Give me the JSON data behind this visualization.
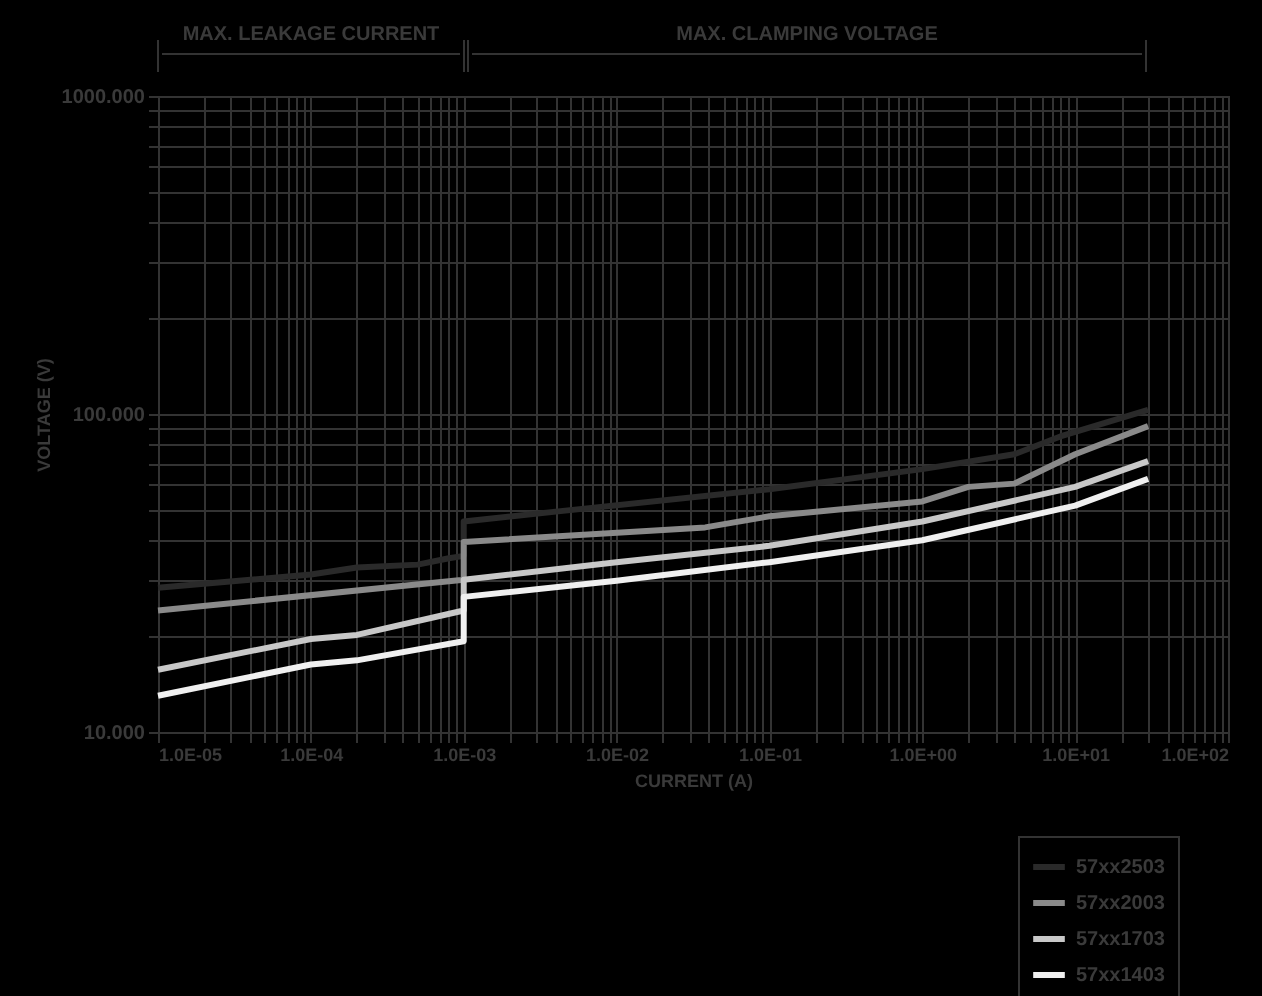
{
  "chart_data": {
    "type": "line",
    "xlabel": "CURRENT (A)",
    "ylabel": "VOLTAGE (V)",
    "annotations": [
      "MAX. LEAKAGE CURRENT",
      "MAX. CLAMPING VOLTAGE"
    ],
    "log": "xy",
    "grid": true,
    "legend": "bottom right",
    "line_style": "solid",
    "marker": "none",
    "xlim": [
      1e-05,
      100
    ],
    "ylim": [
      10,
      1000
    ],
    "xticks": [
      {
        "value": 1e-05,
        "label": "1.0E-05"
      },
      {
        "value": 2e-05,
        "label": null
      },
      {
        "value": 3e-05,
        "label": null
      },
      {
        "value": 4e-05,
        "label": null
      },
      {
        "value": 5e-05,
        "label": null
      },
      {
        "value": 6e-05,
        "label": null
      },
      {
        "value": 7e-05,
        "label": null
      },
      {
        "value": 8e-05,
        "label": null
      },
      {
        "value": 9e-05,
        "label": null
      },
      {
        "value": 0.0001,
        "label": "1.0E-04"
      },
      {
        "value": 0.0002,
        "label": null
      },
      {
        "value": 0.0003,
        "label": null
      },
      {
        "value": 0.0004,
        "label": null
      },
      {
        "value": 0.0005,
        "label": null
      },
      {
        "value": 0.0006,
        "label": null
      },
      {
        "value": 0.0007,
        "label": null
      },
      {
        "value": 0.0008,
        "label": null
      },
      {
        "value": 0.0009,
        "label": null
      },
      {
        "value": 0.001,
        "label": "1.0E-03"
      },
      {
        "value": 0.002,
        "label": null
      },
      {
        "value": 0.003,
        "label": null
      },
      {
        "value": 0.004,
        "label": null
      },
      {
        "value": 0.005,
        "label": null
      },
      {
        "value": 0.006,
        "label": null
      },
      {
        "value": 0.007,
        "label": null
      },
      {
        "value": 0.008,
        "label": null
      },
      {
        "value": 0.009,
        "label": null
      },
      {
        "value": 0.01,
        "label": "1.0E-02"
      },
      {
        "value": 0.02,
        "label": null
      },
      {
        "value": 0.03,
        "label": null
      },
      {
        "value": 0.04,
        "label": null
      },
      {
        "value": 0.05,
        "label": null
      },
      {
        "value": 0.06,
        "label": null
      },
      {
        "value": 0.07,
        "label": null
      },
      {
        "value": 0.08,
        "label": null
      },
      {
        "value": 0.09,
        "label": null
      },
      {
        "value": 0.1,
        "label": "1.0E-01"
      },
      {
        "value": 0.2,
        "label": null
      },
      {
        "value": 0.3,
        "label": null
      },
      {
        "value": 0.4,
        "label": null
      },
      {
        "value": 0.5,
        "label": null
      },
      {
        "value": 0.6,
        "label": null
      },
      {
        "value": 0.7,
        "label": null
      },
      {
        "value": 0.8,
        "label": null
      },
      {
        "value": 0.9,
        "label": null
      },
      {
        "value": 1,
        "label": "1.0E+00"
      },
      {
        "value": 2,
        "label": null
      },
      {
        "value": 3,
        "label": null
      },
      {
        "value": 4,
        "label": null
      },
      {
        "value": 5,
        "label": null
      },
      {
        "value": 6,
        "label": null
      },
      {
        "value": 7,
        "label": null
      },
      {
        "value": 8,
        "label": null
      },
      {
        "value": 9,
        "label": null
      },
      {
        "value": 10,
        "label": "1.0E+01"
      },
      {
        "value": 20,
        "label": null
      },
      {
        "value": 30,
        "label": null
      },
      {
        "value": 40,
        "label": null
      },
      {
        "value": 50,
        "label": null
      },
      {
        "value": 60,
        "label": null
      },
      {
        "value": 70,
        "label": null
      },
      {
        "value": 80,
        "label": null
      },
      {
        "value": 90,
        "label": null
      },
      {
        "value": 100,
        "label": "1.0E+02"
      }
    ],
    "yticks": [
      {
        "value": 10,
        "label": "10.000"
      },
      {
        "value": 20,
        "label": null
      },
      {
        "value": 30,
        "label": null
      },
      {
        "value": 40,
        "label": null
      },
      {
        "value": 50,
        "label": null
      },
      {
        "value": 60,
        "label": null
      },
      {
        "value": 70,
        "label": null
      },
      {
        "value": 80,
        "label": null
      },
      {
        "value": 90,
        "label": null
      },
      {
        "value": 100,
        "label": "100.000"
      },
      {
        "value": 200,
        "label": null
      },
      {
        "value": 300,
        "label": null
      },
      {
        "value": 400,
        "label": null
      },
      {
        "value": 500,
        "label": null
      },
      {
        "value": 600,
        "label": null
      },
      {
        "value": 700,
        "label": null
      },
      {
        "value": 800,
        "label": null
      },
      {
        "value": 900,
        "label": null
      },
      {
        "value": 1000,
        "label": "1000.000"
      }
    ],
    "series": [
      {
        "name": "57xx2503",
        "color": "#2a2a2a",
        "x": [
          1e-05,
          0.0001,
          0.0002,
          0.0005,
          0.0008,
          0.001,
          0.001,
          0.0043,
          0.1,
          1,
          4,
          8,
          30
        ],
        "values": [
          28.4,
          31.3,
          32.9,
          33.6,
          35.2,
          35.8,
          45.9,
          49.5,
          58,
          67.1,
          74.7,
          85,
          103
        ]
      },
      {
        "name": "57xx2003",
        "color": "#8a8a8a",
        "x": [
          1e-05,
          0.001,
          0.001,
          0.038,
          0.1,
          1,
          2,
          4,
          10,
          30
        ],
        "values": [
          24.1,
          30.1,
          39.6,
          44,
          47.7,
          53.1,
          59,
          60.4,
          74.7,
          91.6
        ]
      },
      {
        "name": "57xx1703",
        "color": "#c8c8c8",
        "x": [
          1e-05,
          0.0001,
          0.0002,
          0.001,
          0.001,
          0.01,
          0.1,
          1,
          10,
          30
        ],
        "values": [
          15.7,
          19.6,
          20.2,
          24.1,
          30.1,
          34.2,
          38.5,
          45.9,
          59,
          71.1
        ]
      },
      {
        "name": "57xx1403",
        "color": "#f0f0f0",
        "x": [
          1e-05,
          0.0001,
          0.0002,
          0.001,
          0.001,
          0.01,
          0.1,
          1,
          10,
          30
        ],
        "values": [
          13,
          16.3,
          16.8,
          19.3,
          26.6,
          29.9,
          34.2,
          40.1,
          51.5,
          62.5
        ]
      }
    ]
  }
}
